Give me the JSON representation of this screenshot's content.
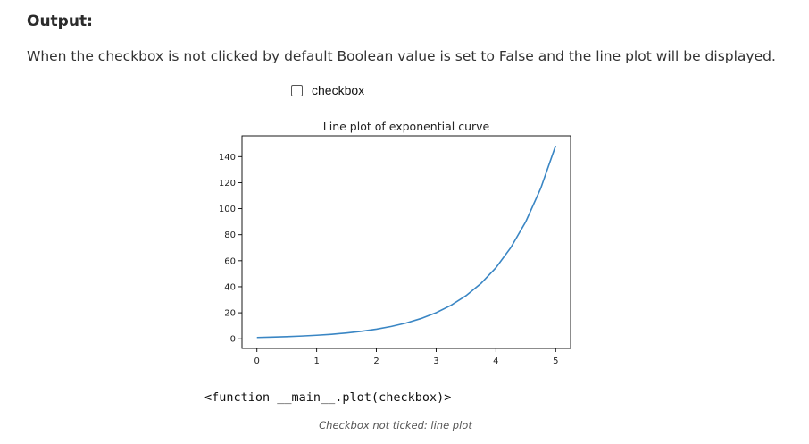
{
  "heading": "Output:",
  "description": "When the checkbox is not clicked by default Boolean value is set to False and the line plot will be displayed.",
  "checkbox": {
    "label": "checkbox",
    "checked": false
  },
  "code_output": "<function __main__.plot(checkbox)>",
  "caption": "Checkbox not ticked: line plot",
  "chart_data": {
    "type": "line",
    "title": "Line plot of exponential curve",
    "xlabel": "",
    "ylabel": "",
    "xlim": [
      -0.25,
      5.25
    ],
    "ylim": [
      -7.4,
      156
    ],
    "xticks": [
      0,
      1,
      2,
      3,
      4,
      5
    ],
    "yticks": [
      0,
      20,
      40,
      60,
      80,
      100,
      120,
      140
    ],
    "grid": false,
    "line_color": "#3a86c4",
    "series": [
      {
        "x": [
          0,
          0.25,
          0.5,
          0.75,
          1,
          1.25,
          1.5,
          1.75,
          2,
          2.25,
          2.5,
          2.75,
          3,
          3.25,
          3.5,
          3.75,
          4,
          4.25,
          4.5,
          4.75,
          5
        ],
        "y": [
          1,
          1.28,
          1.65,
          2.12,
          2.72,
          3.49,
          4.48,
          5.75,
          7.39,
          9.49,
          12.18,
          15.64,
          20.09,
          25.79,
          33.12,
          42.52,
          54.6,
          70.11,
          90.02,
          115.58,
          148.41
        ]
      }
    ]
  }
}
